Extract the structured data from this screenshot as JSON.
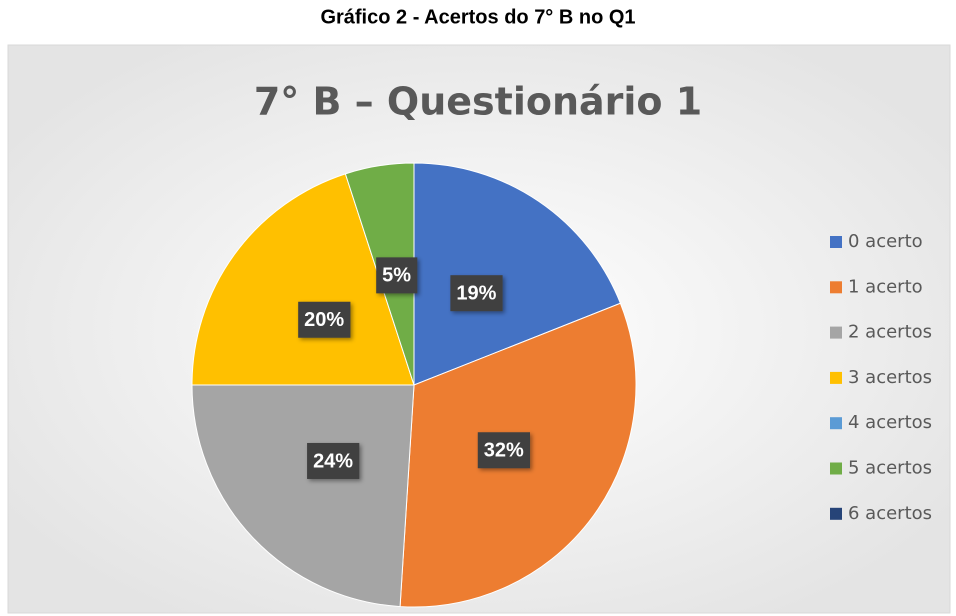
{
  "caption": "Gráfico 2 - Acertos do 7° B no Q1",
  "chart_data": {
    "type": "pie",
    "title": "7° B – Questionário 1",
    "categories": [
      "0 acerto",
      "1 acerto",
      "2 acertos",
      "3 acertos",
      "4 acertos",
      "5 acertos",
      "6 acertos"
    ],
    "values": [
      19,
      32,
      24,
      20,
      0,
      5,
      0
    ],
    "value_labels": [
      "19%",
      "32%",
      "24%",
      "20%",
      null,
      "5%",
      null
    ],
    "colors": [
      "#4472c4",
      "#ed7d31",
      "#a5a5a5",
      "#ffc000",
      "#5b9bd5",
      "#70ad47",
      "#264478"
    ],
    "legend": "right"
  }
}
